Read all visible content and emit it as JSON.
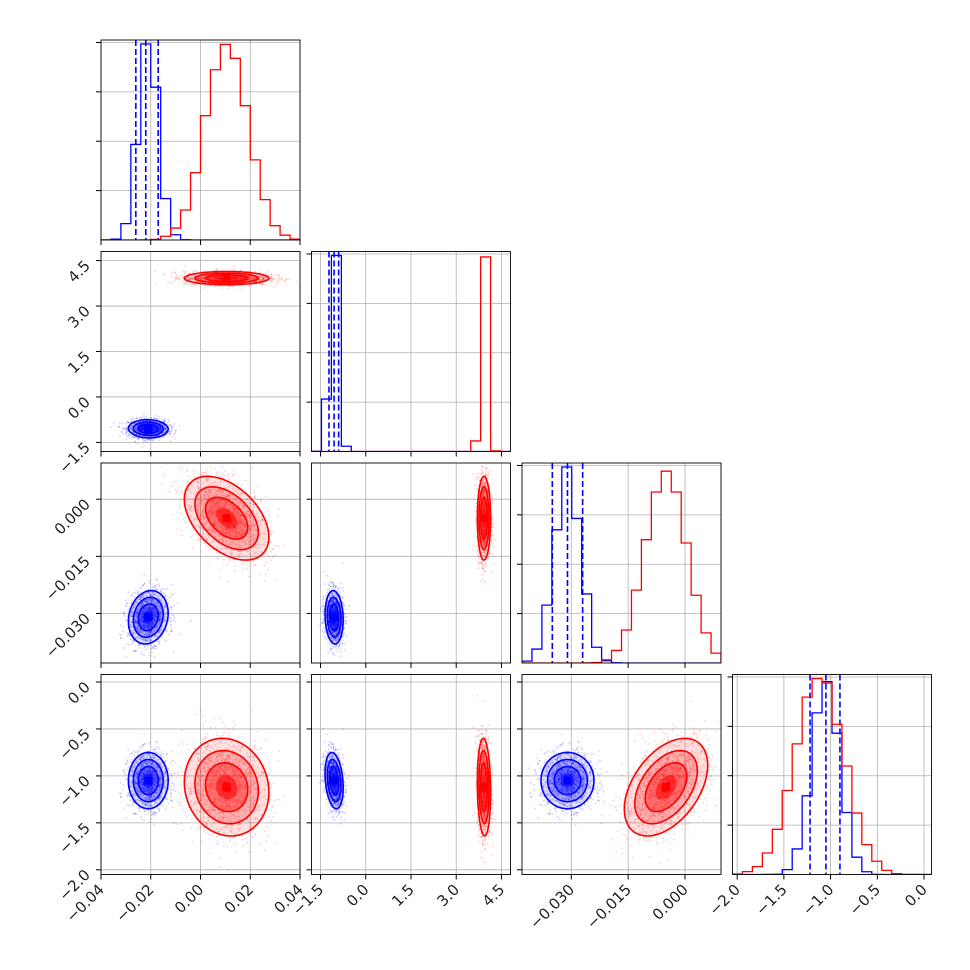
{
  "colors": {
    "series_a": "#0000ff",
    "series_b": "#ff0000",
    "grid": "#b0b0b0",
    "axis": "#000000"
  },
  "chart_data": {
    "type": "corner",
    "grid": true,
    "legend": "none",
    "parameters": [
      {
        "range": [
          -0.04,
          0.04
        ],
        "ticks": [
          -0.04,
          -0.02,
          0.0,
          0.02,
          0.04
        ],
        "tick_labels": [
          "−0.04",
          "−0.02",
          "0.00",
          "0.02",
          "0.04"
        ]
      },
      {
        "range": [
          -1.8,
          4.8
        ],
        "ticks": [
          -1.5,
          0.0,
          1.5,
          3.0,
          4.5
        ],
        "tick_labels": [
          "−1.5",
          "0.0",
          "1.5",
          "3.0",
          "4.5"
        ]
      },
      {
        "range": [
          -0.043,
          0.0095
        ],
        "ticks": [
          -0.03,
          -0.015,
          0.0
        ],
        "tick_labels": [
          "−0.030",
          "−0.015",
          "0.000"
        ]
      },
      {
        "range": [
          -2.05,
          0.08
        ],
        "ticks": [
          -2.0,
          -1.5,
          -1.0,
          -0.5,
          0.0
        ],
        "tick_labels": [
          "−2.0",
          "−1.5",
          "−1.0",
          "−0.5",
          "0.0"
        ]
      }
    ],
    "series": [
      {
        "color": "#0000ff",
        "mean": [
          -0.021,
          -1.05,
          -0.031,
          -1.05
        ],
        "std": [
          0.004,
          0.15,
          0.0035,
          0.15
        ],
        "correlation": [
          [
            0,
            1,
            -0.05
          ],
          [
            0,
            2,
            0.15
          ],
          [
            1,
            2,
            -0.1
          ],
          [
            0,
            3,
            0.0
          ],
          [
            1,
            3,
            -0.25
          ],
          [
            2,
            3,
            0.0
          ]
        ],
        "quantiles": [
          [
            -0.026,
            -0.022,
            -0.017
          ],
          [
            -1.22,
            -1.05,
            -0.9
          ],
          [
            -0.035,
            -0.031,
            -0.027
          ],
          [
            -1.22,
            -1.05,
            -0.9
          ]
        ]
      },
      {
        "color": "#ff0000",
        "mean": [
          0.0105,
          3.92,
          -0.005,
          -1.12
        ],
        "std": [
          0.0085,
          0.11,
          0.0055,
          0.26
        ],
        "correlation": [
          [
            0,
            1,
            0.0
          ],
          [
            0,
            2,
            -0.45
          ],
          [
            1,
            2,
            0.0
          ],
          [
            0,
            3,
            -0.1
          ],
          [
            1,
            3,
            -0.1
          ],
          [
            2,
            3,
            0.45
          ]
        ],
        "quantiles": []
      }
    ]
  }
}
